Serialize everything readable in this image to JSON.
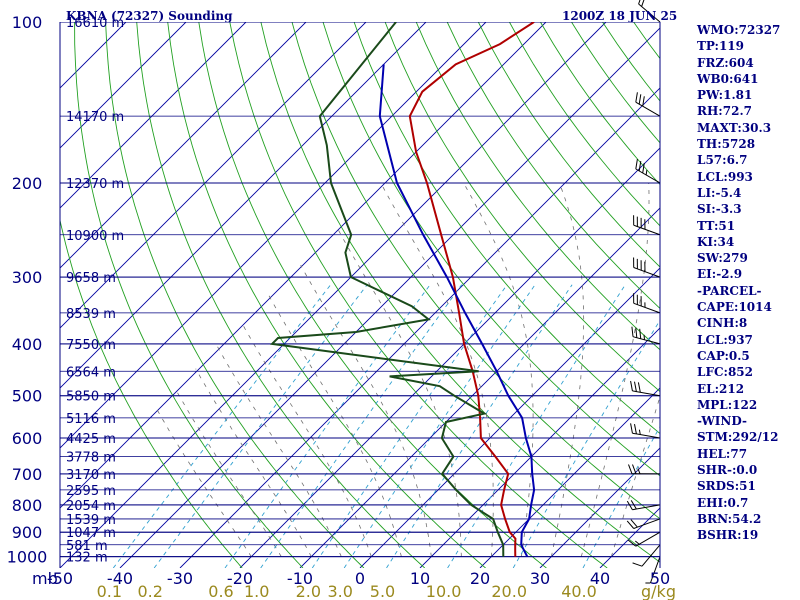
{
  "chart_data": {
    "type": "line",
    "subtype": "skew-t-log-p",
    "title": "KBNA (72327) Sounding",
    "time": "1200Z 18 JUN 25",
    "y_axis_unit": "mb",
    "mixing_ratio_unit": "g/kg",
    "pressure_ticks": [
      100,
      200,
      300,
      400,
      500,
      600,
      700,
      800,
      900,
      1000
    ],
    "temperature_ticks": [
      -50,
      -40,
      -30,
      -20,
      -10,
      0,
      10,
      20,
      30,
      40,
      50
    ],
    "mixing_ratio_labels": [
      "0.1",
      "0.2",
      "0.6",
      "1.0",
      "2.0",
      "3.0",
      "5.0",
      "10.0",
      "20.0",
      "40.0"
    ],
    "height_labels": [
      {
        "p": 100,
        "label": "16610 m"
      },
      {
        "p": 150,
        "label": "14170 m"
      },
      {
        "p": 200,
        "label": "12370 m"
      },
      {
        "p": 250,
        "label": "10900 m"
      },
      {
        "p": 300,
        "label": "9658 m"
      },
      {
        "p": 350,
        "label": "8539 m"
      },
      {
        "p": 400,
        "label": "7550 m"
      },
      {
        "p": 450,
        "label": "6564 m"
      },
      {
        "p": 500,
        "label": "5850 m"
      },
      {
        "p": 550,
        "label": "5116 m"
      },
      {
        "p": 600,
        "label": "4425 m"
      },
      {
        "p": 650,
        "label": "3778 m"
      },
      {
        "p": 700,
        "label": "3170 m"
      },
      {
        "p": 750,
        "label": "2595 m"
      },
      {
        "p": 800,
        "label": "2054 m"
      },
      {
        "p": 850,
        "label": "1539 m"
      },
      {
        "p": 900,
        "label": "1047 m"
      },
      {
        "p": 950,
        "label": "581 m"
      },
      {
        "p": 1000,
        "label": "132 m"
      }
    ],
    "series": [
      {
        "color": "#b00000",
        "points": [
          {
            "p": 1000,
            "t": 24
          },
          {
            "p": 975,
            "t": 23
          },
          {
            "p": 950,
            "t": 22
          },
          {
            "p": 925,
            "t": 21
          },
          {
            "p": 900,
            "t": 19
          },
          {
            "p": 850,
            "t": 16
          },
          {
            "p": 800,
            "t": 13
          },
          {
            "p": 750,
            "t": 11
          },
          {
            "p": 700,
            "t": 9
          },
          {
            "p": 650,
            "t": 4
          },
          {
            "p": 600,
            "t": -1.5
          },
          {
            "p": 550,
            "t": -5
          },
          {
            "p": 500,
            "t": -9
          },
          {
            "p": 450,
            "t": -14
          },
          {
            "p": 400,
            "t": -20
          },
          {
            "p": 350,
            "t": -26
          },
          {
            "p": 300,
            "t": -33
          },
          {
            "p": 250,
            "t": -42
          },
          {
            "p": 200,
            "t": -53
          },
          {
            "p": 175,
            "t": -60
          },
          {
            "p": 150,
            "t": -67
          },
          {
            "p": 135,
            "t": -69
          },
          {
            "p": 120,
            "t": -68
          },
          {
            "p": 110,
            "t": -64
          },
          {
            "p": 100,
            "t": -62
          }
        ]
      },
      {
        "color": "#1a4a1a",
        "points": [
          {
            "p": 1000,
            "t": 22
          },
          {
            "p": 950,
            "t": 20
          },
          {
            "p": 900,
            "t": 17
          },
          {
            "p": 850,
            "t": 14
          },
          {
            "p": 800,
            "t": 8
          },
          {
            "p": 750,
            "t": 3
          },
          {
            "p": 700,
            "t": -2
          },
          {
            "p": 650,
            "t": -3
          },
          {
            "p": 600,
            "t": -8
          },
          {
            "p": 560,
            "t": -10
          },
          {
            "p": 540,
            "t": -5
          },
          {
            "p": 500,
            "t": -13
          },
          {
            "p": 480,
            "t": -17
          },
          {
            "p": 460,
            "t": -27
          },
          {
            "p": 450,
            "t": -13
          },
          {
            "p": 400,
            "t": -52
          },
          {
            "p": 390,
            "t": -52
          },
          {
            "p": 380,
            "t": -40
          },
          {
            "p": 360,
            "t": -30
          },
          {
            "p": 340,
            "t": -35
          },
          {
            "p": 300,
            "t": -50
          },
          {
            "p": 270,
            "t": -55
          },
          {
            "p": 250,
            "t": -57
          },
          {
            "p": 200,
            "t": -69
          },
          {
            "p": 170,
            "t": -76
          },
          {
            "p": 150,
            "t": -82
          },
          {
            "p": 100,
            "t": -85
          }
        ]
      },
      {
        "color": "#0000b0",
        "points": [
          {
            "p": 1000,
            "t": 26
          },
          {
            "p": 950,
            "t": 23
          },
          {
            "p": 900,
            "t": 21
          },
          {
            "p": 850,
            "t": 20
          },
          {
            "p": 800,
            "t": 18
          },
          {
            "p": 750,
            "t": 16
          },
          {
            "p": 700,
            "t": 13
          },
          {
            "p": 650,
            "t": 10
          },
          {
            "p": 600,
            "t": 6
          },
          {
            "p": 550,
            "t": 2
          },
          {
            "p": 500,
            "t": -4
          },
          {
            "p": 450,
            "t": -10
          },
          {
            "p": 400,
            "t": -17
          },
          {
            "p": 350,
            "t": -25
          },
          {
            "p": 300,
            "t": -34
          },
          {
            "p": 250,
            "t": -45
          },
          {
            "p": 200,
            "t": -58
          },
          {
            "p": 150,
            "t": -72
          },
          {
            "p": 120,
            "t": -80
          }
        ]
      }
    ],
    "indices": [
      "WMO:72327",
      "TP:119",
      "FRZ:604",
      "WB0:641",
      "PW:1.81",
      "RH:72.7",
      "MAXT:30.3",
      "TH:5728",
      "L57:6.7",
      "LCL:993",
      "LI:-5.4",
      "SI:-3.3",
      "TT:51",
      "KI:34",
      "SW:279",
      "EI:-2.9",
      "-PARCEL-",
      "CAPE:1014",
      "CINH:8",
      "LCL:937",
      "CAP:0.5",
      "LFC:852",
      "EL:212",
      "MPL:122",
      "-WIND-",
      "STM:292/12",
      "HEL:77",
      "SHR-:0.0",
      "SRDS:51",
      "EHI:0.7",
      "BRN:54.2",
      "BSHR:19"
    ],
    "wind_barbs": [
      {
        "p": 1000,
        "dir": 200,
        "spd": 5
      },
      {
        "p": 950,
        "dir": 220,
        "spd": 10
      },
      {
        "p": 900,
        "dir": 240,
        "spd": 15
      },
      {
        "p": 850,
        "dir": 250,
        "spd": 20
      },
      {
        "p": 800,
        "dir": 260,
        "spd": 20
      },
      {
        "p": 700,
        "dir": 270,
        "spd": 25
      },
      {
        "p": 600,
        "dir": 280,
        "spd": 25
      },
      {
        "p": 500,
        "dir": 280,
        "spd": 30
      },
      {
        "p": 400,
        "dir": 285,
        "spd": 35
      },
      {
        "p": 350,
        "dir": 290,
        "spd": 35
      },
      {
        "p": 300,
        "dir": 290,
        "spd": 40
      },
      {
        "p": 250,
        "dir": 290,
        "spd": 40
      },
      {
        "p": 200,
        "dir": 300,
        "spd": 35
      },
      {
        "p": 150,
        "dir": 300,
        "spd": 30
      },
      {
        "p": 100,
        "dir": 310,
        "spd": 20
      }
    ]
  }
}
